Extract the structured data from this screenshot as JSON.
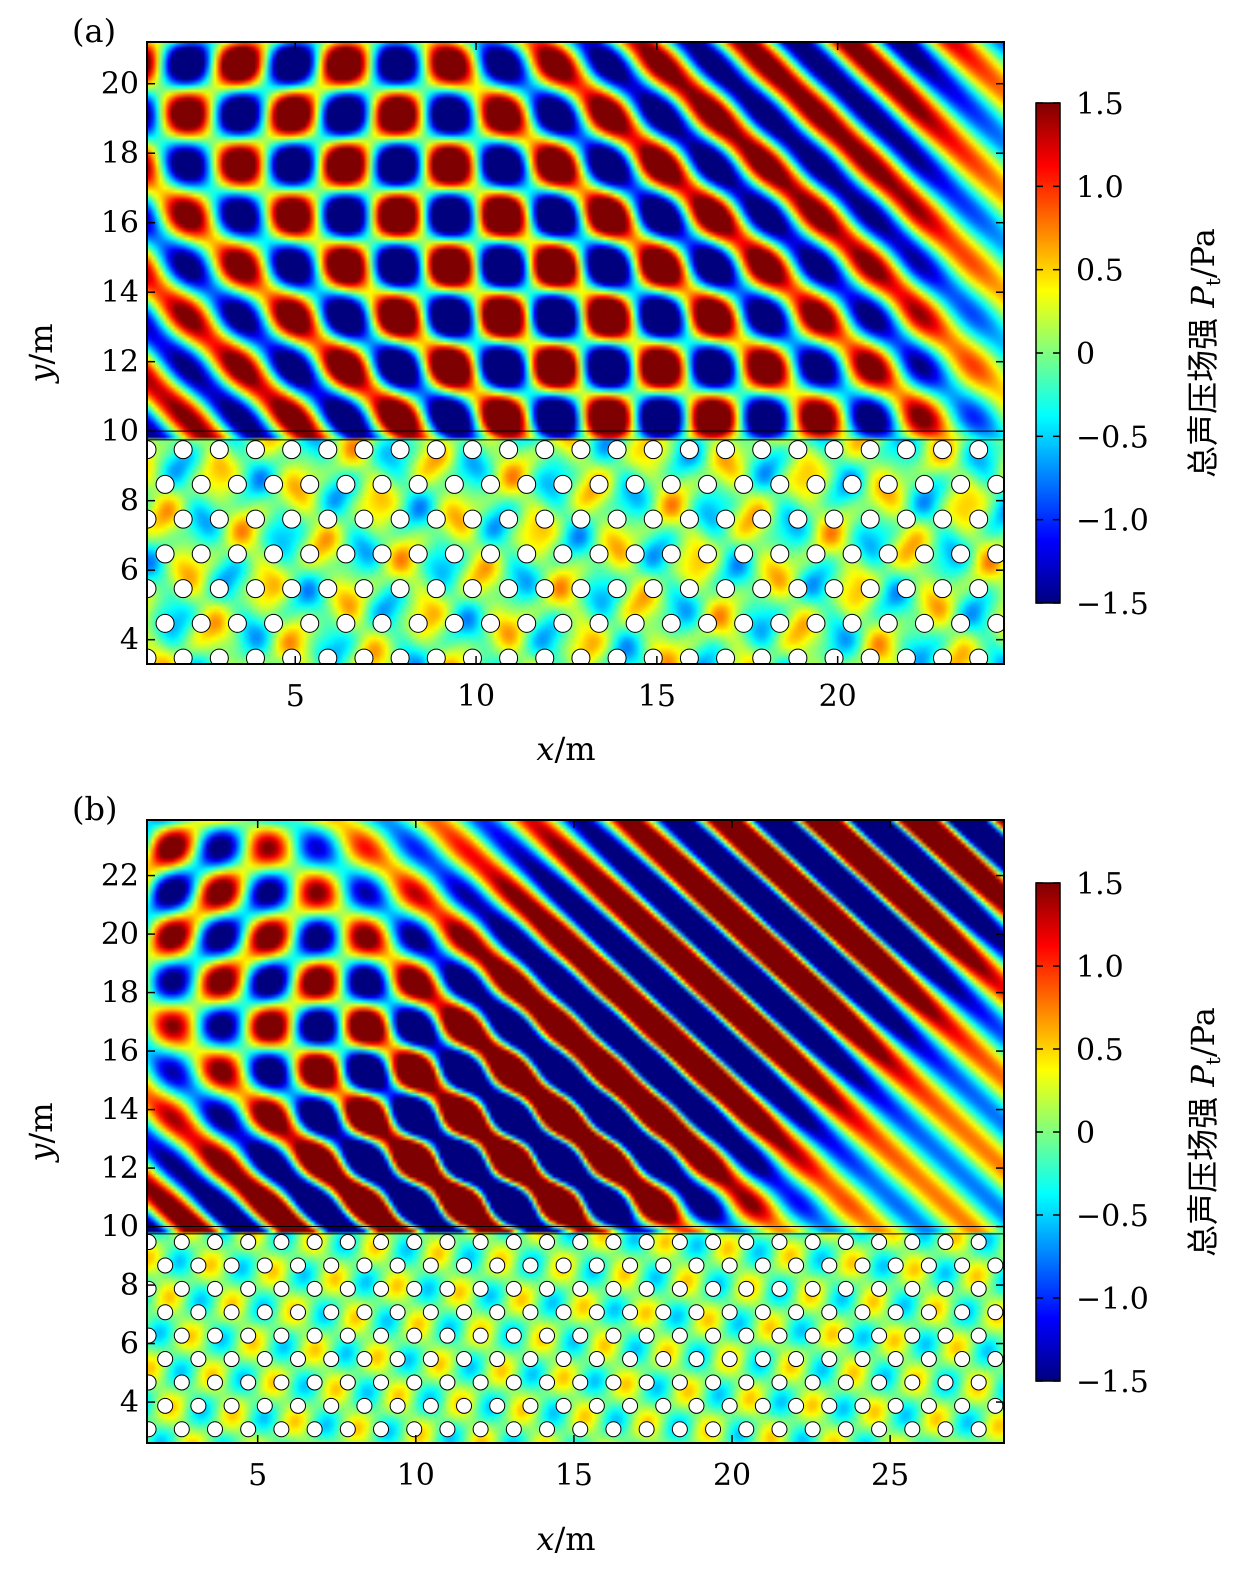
{
  "colors": {
    "colormap": [
      "#00007f",
      "#0000ff",
      "#007fff",
      "#00ffff",
      "#7fff7f",
      "#ffff00",
      "#ff7f00",
      "#ff0000",
      "#7f0000"
    ],
    "axis": "#000000",
    "inclusion_fill": "#ffffff"
  },
  "chart_data": [
    {
      "type": "heatmap",
      "panel_label": "(a)",
      "xlabel": "x/m",
      "ylabel": "y/m",
      "xlim": [
        0.9,
        24.6
      ],
      "ylim": [
        3.3,
        21.2
      ],
      "xticks": [
        5,
        10,
        15,
        20
      ],
      "yticks": [
        4,
        6,
        8,
        10,
        12,
        14,
        16,
        18,
        20
      ],
      "interface_y": [
        9.75,
        10.0
      ],
      "lattice_region_y": [
        3.3,
        9.75
      ],
      "colorbar": {
        "label": "总声压场强 P_t/Pa",
        "label_text": "总声压场强 ",
        "label_symbol": "P",
        "label_sub": "t",
        "label_unit": "/Pa",
        "range": [
          -1.5,
          1.5
        ],
        "ticks": [
          "1.5",
          "1.0",
          "0.5",
          "0",
          "−0.5",
          "−1.0",
          "−1.5"
        ],
        "tick_values": [
          1.5,
          1.0,
          0.5,
          0,
          -0.5,
          -1.0,
          -1.5
        ]
      }
    },
    {
      "type": "heatmap",
      "panel_label": "(b)",
      "xlabel": "x/m",
      "ylabel": "y/m",
      "xlim": [
        1.5,
        28.6
      ],
      "ylim": [
        2.6,
        23.9
      ],
      "xticks": [
        5,
        10,
        15,
        20,
        25
      ],
      "yticks": [
        4,
        6,
        8,
        10,
        12,
        14,
        16,
        18,
        20,
        22
      ],
      "interface_y": [
        9.75,
        10.0
      ],
      "lattice_region_y": [
        2.6,
        9.75
      ],
      "colorbar": {
        "label": "总声压场强 P_t/Pa",
        "label_text": "总声压场强 ",
        "label_symbol": "P",
        "label_sub": "t",
        "label_unit": "/Pa",
        "range": [
          -1.5,
          1.5
        ],
        "ticks": [
          "1.5",
          "1.0",
          "0.5",
          "0",
          "−0.5",
          "−1.0",
          "−1.5"
        ],
        "tick_values": [
          1.5,
          1.0,
          0.5,
          0,
          -0.5,
          -1.0,
          -1.5
        ]
      }
    }
  ]
}
